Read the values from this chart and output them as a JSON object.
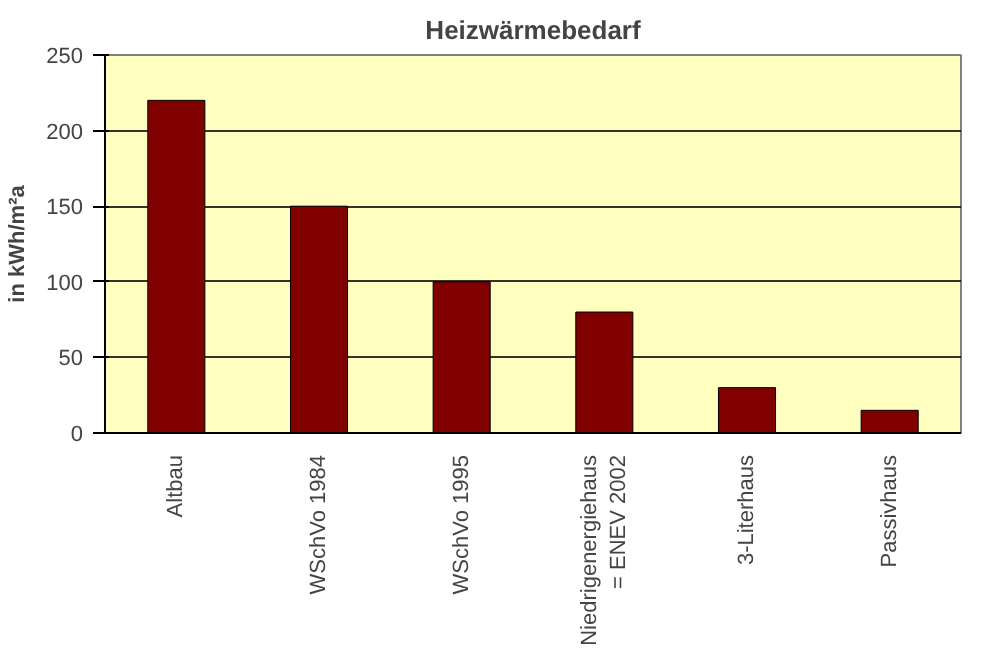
{
  "chart_data": {
    "type": "bar",
    "title": "Heizwärmebedarf",
    "ylabel": "in kWh/m²a",
    "categories": [
      "Altbau",
      "WSchVo 1984",
      "WSchVo 1995",
      "Niedrigenergiehaus\n= ENEV 2002",
      "3-Literhaus",
      "Passivhaus"
    ],
    "values": [
      220,
      150,
      100,
      80,
      30,
      15
    ],
    "color": "#800000",
    "ylim": [
      0,
      250
    ],
    "yticks": [
      0,
      50,
      100,
      150,
      200,
      250
    ],
    "grid": "y"
  }
}
